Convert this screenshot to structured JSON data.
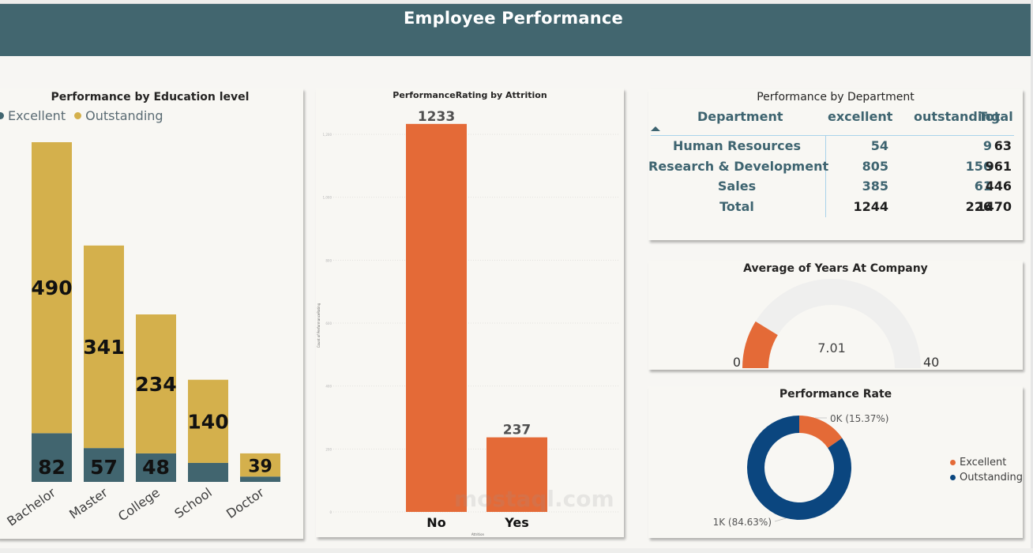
{
  "header": {
    "title": "Employee Performance"
  },
  "colors": {
    "header_bg": "#42666f",
    "excellent": "#41656f",
    "outstanding": "#d4b04c",
    "attrition_bar": "#e46a37",
    "gauge_fill": "#e46a37",
    "gauge_track": "#efefee",
    "donut_excellent": "#e46a37",
    "donut_outstanding": "#0b467f"
  },
  "chart_data": [
    {
      "id": "education",
      "type": "bar",
      "stacked": true,
      "title": "Performance by Education level",
      "legend": [
        "Excellent",
        "Outstanding"
      ],
      "legend_position": "top-left",
      "categories": [
        "Bachelor",
        "Master",
        "College",
        "School",
        "Doctor"
      ],
      "series": [
        {
          "name": "Excellent",
          "values": [
            82,
            57,
            48,
            32,
            9
          ],
          "labels": [
            "82",
            "57",
            "48",
            "",
            ""
          ]
        },
        {
          "name": "Outstanding",
          "values": [
            490,
            341,
            234,
            140,
            39
          ],
          "labels": [
            "490",
            "341",
            "234",
            "140",
            "39"
          ]
        }
      ],
      "xlabel": "",
      "ylabel": ""
    },
    {
      "id": "attrition",
      "type": "bar",
      "title": "PerformanceRating by Attrition",
      "categories": [
        "No",
        "Yes"
      ],
      "values": [
        1233,
        237
      ],
      "labels": [
        "1233",
        "237"
      ],
      "xlabel": "Attrition",
      "ylabel": "Count of PerformanceRating",
      "ylim": [
        0,
        1200
      ],
      "yticks": [
        0,
        200,
        400,
        600,
        800,
        1000,
        1200
      ],
      "ytick_labels": [
        "0",
        "200",
        "400",
        "600",
        "800",
        "1,000",
        "1,200"
      ],
      "grid": true
    },
    {
      "id": "department",
      "type": "table",
      "title": "Performance by Department",
      "columns": [
        "Department",
        "excellent",
        "outstanding",
        "Total"
      ],
      "rows": [
        [
          "Human Resources",
          "54",
          "9",
          "63"
        ],
        [
          "Research & Development",
          "805",
          "156",
          "961"
        ],
        [
          "Sales",
          "385",
          "61",
          "446"
        ]
      ],
      "total_row": [
        "Total",
        "1244",
        "226",
        "1470"
      ],
      "sort_indicator": "ascending"
    },
    {
      "id": "gauge",
      "type": "gauge",
      "title": "Average of Years At Company",
      "value": 7.01,
      "value_label": "7.01",
      "min": 0,
      "max": 40,
      "min_label": "0",
      "max_label": "40"
    },
    {
      "id": "performance_rate",
      "type": "pie",
      "donut": true,
      "title": "Performance Rate",
      "categories": [
        "Excellent",
        "Outstanding"
      ],
      "values": [
        15.37,
        84.63
      ],
      "labels": [
        "0K (15.37%)",
        "1K (84.63%)"
      ],
      "legend": [
        "Excellent",
        "Outstanding"
      ],
      "legend_position": "right"
    }
  ]
}
